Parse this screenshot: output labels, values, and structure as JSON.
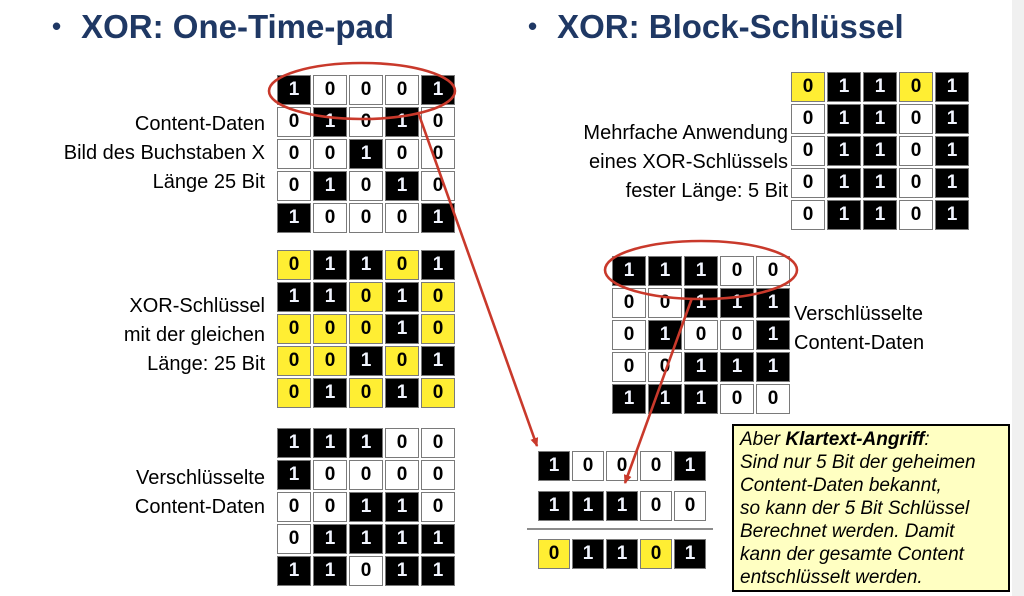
{
  "titles": {
    "bullet": "•",
    "left": "XOR: One-Time-pad",
    "right": "XOR: Block-Schlüssel"
  },
  "labels": {
    "content_data": {
      "lines": [
        "Content-Daten",
        "Bild des Buchstaben X",
        "Länge 25 Bit"
      ]
    },
    "xor_key": {
      "lines": [
        "XOR-Schlüssel",
        "mit der gleichen",
        "Länge: 25 Bit"
      ]
    },
    "encrypted_left": {
      "lines": [
        "Verschlüsselte",
        "Content-Daten"
      ]
    },
    "block_key": {
      "lines": [
        "Mehrfache Anwendung",
        "eines XOR-Schlüssels",
        "fester Länge: 5 Bit"
      ]
    },
    "encrypted_right": {
      "lines": [
        "Verschlüsselte",
        "Content-Daten"
      ]
    }
  },
  "grids": {
    "content_data": {
      "rows": [
        [
          1,
          0,
          0,
          0,
          1
        ],
        [
          0,
          1,
          0,
          1,
          0
        ],
        [
          0,
          0,
          1,
          0,
          0
        ],
        [
          0,
          1,
          0,
          1,
          0
        ],
        [
          1,
          0,
          0,
          0,
          1
        ]
      ],
      "one_bg": "#000000",
      "zero_bg": "#ffffff",
      "one_fg": "#f2f5ff",
      "zero_fg": "#000000"
    },
    "xor_key": {
      "rows": [
        [
          0,
          1,
          1,
          0,
          1
        ],
        [
          1,
          1,
          0,
          1,
          0
        ],
        [
          0,
          0,
          0,
          1,
          0
        ],
        [
          0,
          0,
          1,
          0,
          1
        ],
        [
          0,
          1,
          0,
          1,
          0
        ]
      ],
      "one_bg": "#000000",
      "zero_bg": "#ffee33",
      "one_fg": "#f2f5ff",
      "zero_fg": "#000000"
    },
    "encrypted_left": {
      "rows": [
        [
          1,
          1,
          1,
          0,
          0
        ],
        [
          1,
          0,
          0,
          0,
          0
        ],
        [
          0,
          0,
          1,
          1,
          0
        ],
        [
          0,
          1,
          1,
          1,
          1
        ],
        [
          1,
          1,
          0,
          1,
          1
        ]
      ],
      "one_bg": "#000000",
      "zero_bg": "#ffffff",
      "one_fg": "#f2f5ff",
      "zero_fg": "#000000"
    },
    "block_key": {
      "rows": [
        [
          0,
          1,
          1,
          0,
          1
        ],
        [
          0,
          1,
          1,
          0,
          1
        ],
        [
          0,
          1,
          1,
          0,
          1
        ],
        [
          0,
          1,
          1,
          0,
          1
        ],
        [
          0,
          1,
          1,
          0,
          1
        ]
      ],
      "one_bg": "#000000",
      "zero_bg": "#ffffff",
      "zero_bg_first_row": "#ffee33",
      "one_fg": "#f2f5ff",
      "zero_fg": "#000000"
    },
    "encrypted_right": {
      "rows": [
        [
          1,
          1,
          1,
          0,
          0
        ],
        [
          0,
          0,
          1,
          1,
          1
        ],
        [
          0,
          1,
          0,
          0,
          1
        ],
        [
          0,
          0,
          1,
          1,
          1
        ],
        [
          1,
          1,
          1,
          0,
          0
        ]
      ],
      "one_bg": "#000000",
      "zero_bg": "#ffffff",
      "one_fg": "#f2f5ff",
      "zero_fg": "#000000"
    },
    "attack_plain": {
      "rows": [
        [
          1,
          0,
          0,
          0,
          1
        ]
      ],
      "one_bg": "#000000",
      "zero_bg": "#ffffff",
      "one_fg": "#f2f5ff",
      "zero_fg": "#000000"
    },
    "attack_cipher": {
      "rows": [
        [
          1,
          1,
          1,
          0,
          0
        ]
      ],
      "one_bg": "#000000",
      "zero_bg": "#ffffff",
      "one_fg": "#f2f5ff",
      "zero_fg": "#000000"
    },
    "attack_key": {
      "rows": [
        [
          0,
          1,
          1,
          0,
          1
        ]
      ],
      "one_bg": "#000000",
      "zero_bg": "#ffee33",
      "one_fg": "#f2f5ff",
      "zero_fg": "#000000"
    }
  },
  "note": {
    "line1_pre": "Aber ",
    "line1_bold": "Klartext-Angriff",
    "line1_post": ":",
    "lines": [
      "Sind nur 5 Bit der geheimen",
      "Content-Daten bekannt,",
      "so kann der 5 Bit Schlüssel",
      "Berechnet werden. Damit",
      "kann der gesamte Content",
      "entschlüsselt werden."
    ]
  },
  "colors": {
    "title": "#1f3864",
    "highlight_red": "#c9392b",
    "note_bg": "#ffffc2",
    "key_yellow": "#ffee33",
    "bit_black": "#000000",
    "grid_border": "#7a7a7a"
  }
}
